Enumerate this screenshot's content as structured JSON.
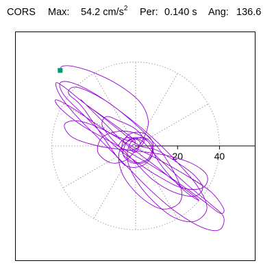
{
  "header": {
    "station": "CORS",
    "max_label": "Max:",
    "max_value": "54.2 cm/s",
    "max_exponent": "2",
    "per_label": "Per:",
    "per_value": "0.140 s",
    "ang_label": "Ang:",
    "ang_value": "136.6"
  },
  "chart_data": {
    "type": "polar-orbit",
    "title": "",
    "radial_ticks": [
      20,
      40
    ],
    "radial_max": 40,
    "polar_grid": "dotted",
    "polar_grid_spokes_deg": [
      0,
      30,
      60,
      90,
      120,
      150,
      180,
      210,
      240,
      270,
      300,
      330
    ],
    "start_marker": {
      "x": -36,
      "y": 36
    },
    "trace_color": "#9400d3",
    "marker_color": "#009977",
    "axis_color": "#000000",
    "grid_color": "#888888",
    "trace_points": [
      [
        -36,
        36
      ],
      [
        -35,
        38
      ],
      [
        -30,
        38
      ],
      [
        -20,
        35
      ],
      [
        -8,
        29
      ],
      [
        2,
        21
      ],
      [
        6,
        12
      ],
      [
        4,
        4
      ],
      [
        0,
        -2
      ],
      [
        -5,
        -7
      ],
      [
        -12,
        -8
      ],
      [
        -18,
        -3
      ],
      [
        -16,
        4
      ],
      [
        -8,
        7
      ],
      [
        0,
        6
      ],
      [
        6,
        2
      ],
      [
        8,
        -4
      ],
      [
        4,
        -9
      ],
      [
        -3,
        -10
      ],
      [
        -9,
        -5
      ],
      [
        -25,
        18
      ],
      [
        -32,
        25
      ],
      [
        -28,
        28
      ],
      [
        -15,
        22
      ],
      [
        -2,
        12
      ],
      [
        10,
        0
      ],
      [
        18,
        -12
      ],
      [
        22,
        -22
      ],
      [
        20,
        -28
      ],
      [
        12,
        -30
      ],
      [
        2,
        -24
      ],
      [
        -6,
        -14
      ],
      [
        -8,
        -4
      ],
      [
        -4,
        2
      ],
      [
        2,
        3
      ],
      [
        10,
        -5
      ],
      [
        24,
        -18
      ],
      [
        36,
        -28
      ],
      [
        42,
        -34
      ],
      [
        40,
        -40
      ],
      [
        32,
        -39
      ],
      [
        20,
        -32
      ],
      [
        8,
        -22
      ],
      [
        -4,
        -10
      ],
      [
        -16,
        2
      ],
      [
        -28,
        14
      ],
      [
        -36,
        24
      ],
      [
        -38,
        30
      ],
      [
        -34,
        28
      ],
      [
        -24,
        20
      ],
      [
        -10,
        10
      ],
      [
        0,
        2
      ],
      [
        -12,
        6
      ],
      [
        -30,
        18
      ],
      [
        -38,
        22
      ],
      [
        -36,
        18
      ],
      [
        -26,
        10
      ],
      [
        -12,
        2
      ],
      [
        2,
        -6
      ],
      [
        18,
        -16
      ],
      [
        32,
        -26
      ],
      [
        40,
        -32
      ],
      [
        42,
        -30
      ],
      [
        36,
        -22
      ],
      [
        24,
        -14
      ],
      [
        10,
        -6
      ],
      [
        -2,
        0
      ],
      [
        -16,
        8
      ],
      [
        -28,
        12
      ],
      [
        -34,
        10
      ],
      [
        -30,
        4
      ],
      [
        -18,
        0
      ],
      [
        -4,
        -2
      ],
      [
        12,
        -4
      ],
      [
        26,
        -8
      ],
      [
        34,
        -14
      ],
      [
        32,
        -20
      ],
      [
        22,
        -20
      ],
      [
        10,
        -14
      ],
      [
        -2,
        -6
      ],
      [
        -10,
        0
      ],
      [
        -24,
        14
      ],
      [
        -34,
        24
      ],
      [
        -36,
        30
      ],
      [
        -30,
        30
      ],
      [
        -18,
        24
      ],
      [
        -4,
        14
      ],
      [
        8,
        4
      ],
      [
        20,
        -8
      ],
      [
        30,
        -20
      ],
      [
        34,
        -30
      ],
      [
        28,
        -36
      ],
      [
        18,
        -34
      ],
      [
        8,
        -26
      ],
      [
        0,
        -16
      ],
      [
        -4,
        -6
      ],
      [
        -2,
        2
      ],
      [
        4,
        4
      ],
      [
        8,
        0
      ],
      [
        6,
        -6
      ],
      [
        0,
        -8
      ],
      [
        -6,
        -4
      ],
      [
        -6,
        2
      ],
      [
        -2,
        6
      ],
      [
        4,
        6
      ],
      [
        8,
        2
      ],
      [
        8,
        -4
      ],
      [
        4,
        -8
      ],
      [
        -2,
        -8
      ],
      [
        -6,
        -4
      ],
      [
        -4,
        2
      ],
      [
        0,
        4
      ],
      [
        6,
        2
      ],
      [
        10,
        -6
      ],
      [
        16,
        -14
      ],
      [
        24,
        -22
      ],
      [
        30,
        -26
      ],
      [
        28,
        -24
      ],
      [
        20,
        -18
      ],
      [
        10,
        -10
      ],
      [
        2,
        -4
      ],
      [
        -6,
        2
      ],
      [
        -14,
        10
      ],
      [
        -22,
        18
      ],
      [
        -26,
        22
      ],
      [
        -24,
        20
      ],
      [
        -16,
        14
      ],
      [
        -6,
        6
      ],
      [
        2,
        0
      ],
      [
        10,
        -2
      ],
      [
        20,
        -8
      ],
      [
        28,
        -14
      ],
      [
        32,
        -20
      ],
      [
        28,
        -24
      ],
      [
        18,
        -22
      ],
      [
        8,
        -16
      ],
      [
        0,
        -8
      ],
      [
        -6,
        -2
      ],
      [
        -12,
        4
      ],
      [
        -16,
        10
      ],
      [
        -14,
        14
      ],
      [
        -8,
        12
      ],
      [
        0,
        8
      ],
      [
        4,
        2
      ],
      [
        -2,
        -2
      ],
      [
        -8,
        0
      ],
      [
        -4,
        4
      ],
      [
        2,
        2
      ],
      [
        0,
        -3
      ],
      [
        -3,
        -1
      ],
      [
        0,
        1
      ]
    ]
  }
}
